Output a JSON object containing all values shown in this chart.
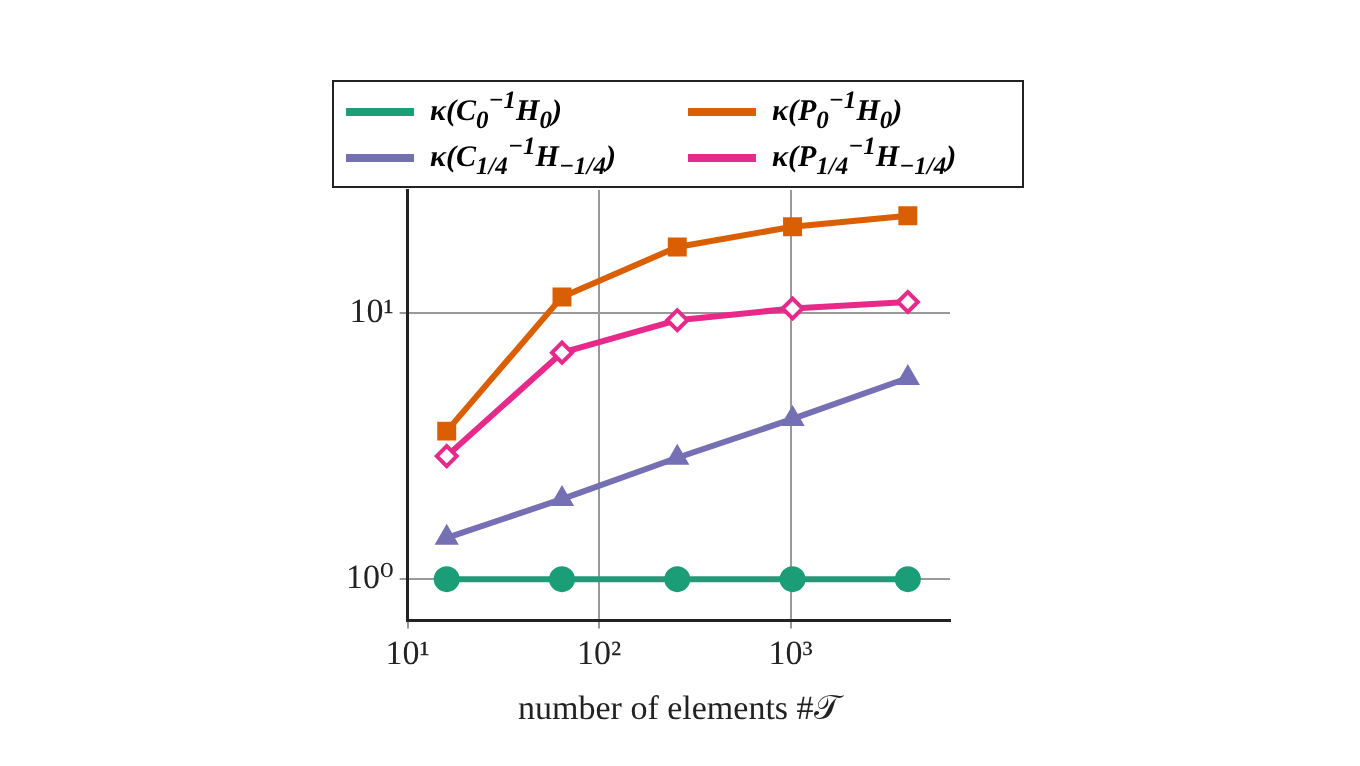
{
  "chart_data": {
    "type": "line",
    "xlabel": "number of elements #𝒯",
    "log": "xy",
    "grid": true,
    "legend": "top",
    "xlim": [
      10,
      6800
    ],
    "ylim": [
      0.74,
      29
    ],
    "xticks": [
      {
        "value": 10,
        "label": "10¹"
      },
      {
        "value": 100,
        "label": "10²"
      },
      {
        "value": 1000,
        "label": "10³"
      }
    ],
    "yticks": [
      {
        "value": 1,
        "label": "10⁰"
      },
      {
        "value": 10,
        "label": "10¹"
      }
    ],
    "x": [
      16,
      64,
      256,
      1024,
      4096
    ],
    "series": [
      {
        "name": "κ(C$_{0}$$^{−1}$H$_{0}$)",
        "color": "#1b9e77",
        "marker": "circle",
        "values": [
          1,
          1,
          1,
          1,
          1
        ]
      },
      {
        "name": "κ(P$_{0}$$^{−1}$H$_{0}$)",
        "color": "#d95f02",
        "marker": "square",
        "values": [
          3.6,
          11.5,
          17.7,
          21.1,
          23.2
        ]
      },
      {
        "name": "κ(C$_{1/4}$$^{−1}$H$_{−1/4}$)",
        "color": "#7570b3",
        "marker": "triangle",
        "values": [
          1.43,
          2.0,
          2.86,
          4.0,
          5.7
        ]
      },
      {
        "name": "κ(P$_{1/4}$$^{−1}$H$_{−1/4}$)",
        "color": "#e7298a",
        "marker": "diamond",
        "values": [
          2.9,
          7.1,
          9.4,
          10.4,
          11.0
        ]
      }
    ]
  }
}
